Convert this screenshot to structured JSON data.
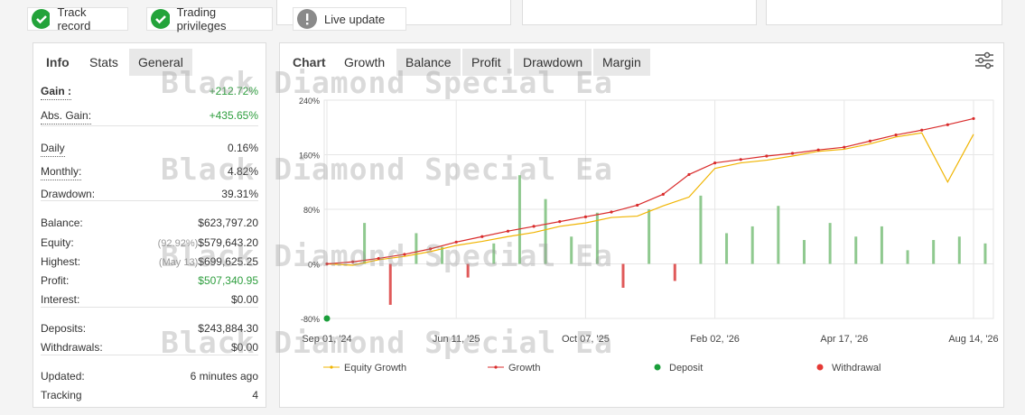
{
  "badges": [
    {
      "label": "Track record",
      "status": "ok"
    },
    {
      "label": "Trading privileges",
      "status": "ok"
    },
    {
      "label": "Live update",
      "status": "info"
    }
  ],
  "stats_tabs": [
    "Info",
    "Stats",
    "General"
  ],
  "stats": [
    [
      {
        "label": "Gain :",
        "value": "+212.72%",
        "color": "#2e9e3e"
      },
      {
        "label": "Abs. Gain:",
        "value": "+435.65%",
        "color": "#2e9e3e"
      }
    ],
    [
      {
        "label": "Daily",
        "value": "0.16%"
      },
      {
        "label": "Monthly:",
        "value": "4.82%"
      },
      {
        "label": "Drawdown:",
        "value": "39.31%"
      }
    ],
    [
      {
        "label": "Balance:",
        "value": "$623,797.20"
      },
      {
        "label": "Equity:",
        "note": "(92.92%)",
        "value": "$579,643.20"
      },
      {
        "label": "Highest:",
        "note": "(May 13)",
        "value": "$699,625.25"
      },
      {
        "label": "Profit:",
        "value": "$507,340.95",
        "color": "#2e9e3e"
      },
      {
        "label": "Interest:",
        "value": "$0.00"
      }
    ],
    [
      {
        "label": "Deposits:",
        "value": "$243,884.30"
      },
      {
        "label": "Withdrawals:",
        "value": "$0.00"
      }
    ],
    [
      {
        "label": "Updated:",
        "value": "6 minutes ago"
      },
      {
        "label": "Tracking",
        "value": "4"
      }
    ]
  ],
  "chart_tabs": [
    "Chart",
    "Growth",
    "Balance",
    "Profit",
    "Drawdown",
    "Margin"
  ],
  "watermark": "Black Diamond Special Ea",
  "chart": {
    "type": "line",
    "categories": [
      "Sep 01, '24",
      null,
      null,
      null,
      null,
      "Jun 11, '25",
      null,
      null,
      null,
      null,
      "Oct 07, '25",
      null,
      null,
      null,
      null,
      "Feb 02, '26",
      null,
      null,
      null,
      null,
      "Apr 17, '26",
      null,
      null,
      null,
      null,
      "Aug 14, '26"
    ],
    "ylim": [
      -80,
      240
    ],
    "yticks": [
      {
        "value": -80,
        "label": "-80%"
      },
      {
        "value": 0,
        "label": "0%"
      },
      {
        "value": 80,
        "label": "80%"
      },
      {
        "value": 160,
        "label": "160%"
      },
      {
        "value": 240,
        "label": "240%"
      }
    ],
    "grid": true,
    "bars": {
      "values": [
        0,
        60,
        -60,
        45,
        25,
        -20,
        30,
        130,
        95,
        40,
        75,
        -35,
        80,
        -25,
        100,
        45,
        55,
        85,
        35,
        60,
        40,
        55,
        20,
        35,
        40,
        30
      ],
      "color": "#8fc98f",
      "negative_color": "#e05a5a"
    },
    "series": [
      {
        "name": "Equity Growth",
        "color": "#f0b400",
        "values": [
          0,
          -2,
          6,
          11,
          18,
          27,
          33,
          40,
          46,
          55,
          60,
          68,
          70,
          85,
          98,
          140,
          148,
          152,
          158,
          165,
          168,
          176,
          186,
          192,
          120,
          190
        ]
      },
      {
        "name": "Growth",
        "color": "#d92b2b",
        "values": [
          0,
          3,
          8,
          14,
          22,
          32,
          40,
          48,
          55,
          62,
          69,
          76,
          86,
          102,
          131,
          148,
          153,
          158,
          162,
          167,
          171,
          180,
          189,
          196,
          204,
          213
        ]
      },
      {
        "name": "Deposit",
        "color": "#1a9e3a",
        "values": [
          -80,
          null,
          null,
          null,
          null,
          null,
          null,
          null,
          null,
          null,
          null,
          null,
          null,
          null,
          null,
          null,
          null,
          null,
          null,
          null,
          null,
          null,
          null,
          null,
          null,
          null
        ]
      },
      {
        "name": "Withdrawal",
        "color": "#e53935",
        "values": [
          null,
          null,
          null,
          null,
          null,
          null,
          null,
          null,
          null,
          null,
          null,
          null,
          null,
          null,
          null,
          null,
          null,
          null,
          null,
          null,
          null,
          null,
          null,
          null,
          null,
          null
        ]
      }
    ]
  }
}
